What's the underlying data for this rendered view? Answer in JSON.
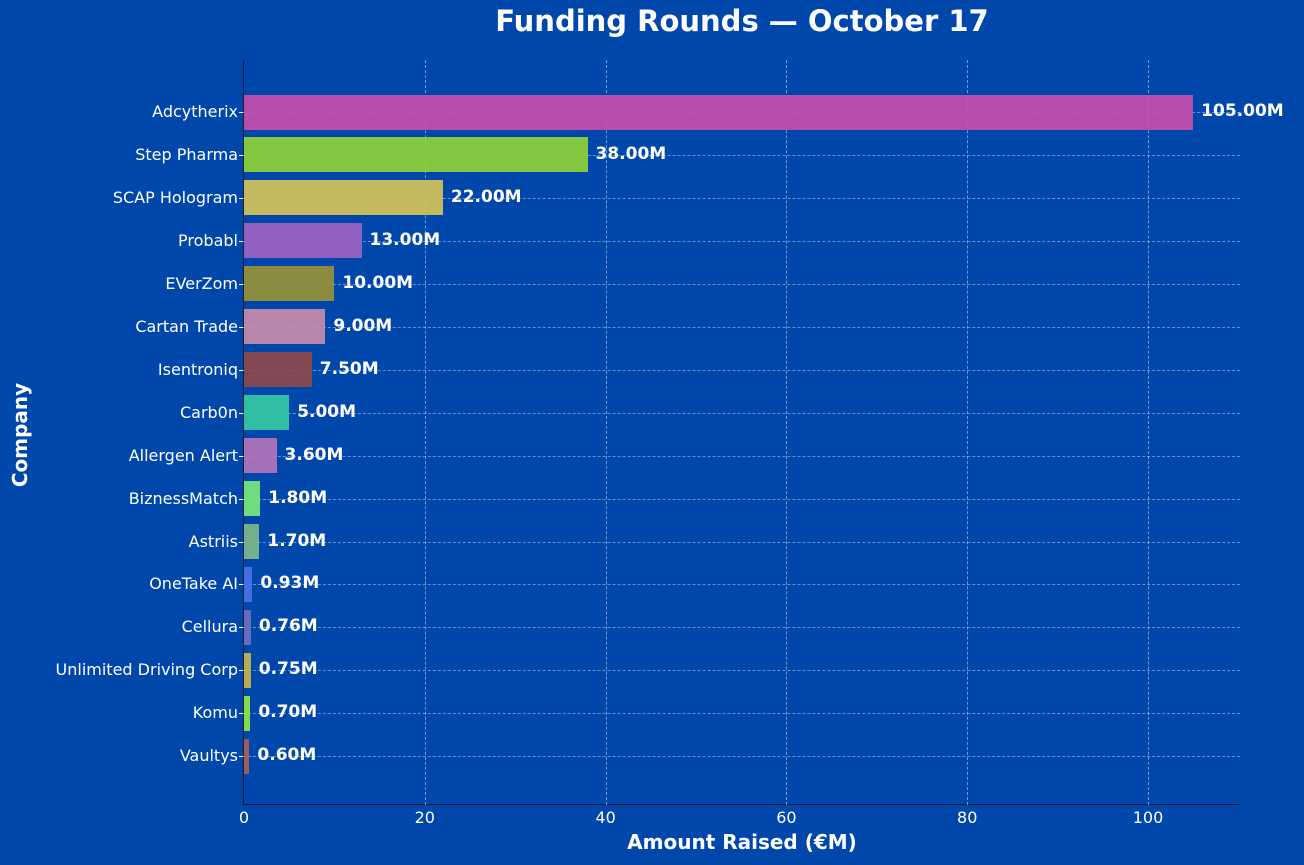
{
  "chart_data": {
    "type": "bar",
    "orientation": "horizontal",
    "title": "Funding Rounds — October 17",
    "xlabel": "Amount Raised (€M)",
    "ylabel": "Company",
    "xlim": [
      0,
      110
    ],
    "xticks": [
      0,
      20,
      40,
      60,
      80,
      100
    ],
    "grid": true,
    "legend": null,
    "categories": [
      "Adcytherix",
      "Step Pharma",
      "SCAP Hologram",
      "Probabl",
      "EVerZom",
      "Cartan Trade",
      "Isentroniq",
      "Carb0n",
      "Allergen Alert",
      "BiznessMatch",
      "Astriis",
      "OneTake AI",
      "Cellura",
      "Unlimited Driving Corp",
      "Komu",
      "Vaultys"
    ],
    "values": [
      105.0,
      38.0,
      22.0,
      13.0,
      10.0,
      9.0,
      7.5,
      5.0,
      3.6,
      1.8,
      1.7,
      0.93,
      0.76,
      0.75,
      0.7,
      0.6
    ],
    "labels": [
      "105.00M",
      "38.00M",
      "22.00M",
      "13.00M",
      "10.00M",
      "9.00M",
      "7.50M",
      "5.00M",
      "3.60M",
      "1.80M",
      "1.70M",
      "0.93M",
      "0.76M",
      "0.75M",
      "0.70M",
      "0.60M"
    ],
    "colors": [
      "#C64FAE",
      "#8ED236",
      "#D4C458",
      "#9D63C4",
      "#979338",
      "#C98CAA",
      "#8E4A4A",
      "#36C9A4",
      "#B474B8",
      "#7CE87A",
      "#7DB98A",
      "#4A72E8",
      "#6E6FC2",
      "#C6B44E",
      "#8BEA3D",
      "#A9605A"
    ]
  },
  "background": "#0047AB"
}
